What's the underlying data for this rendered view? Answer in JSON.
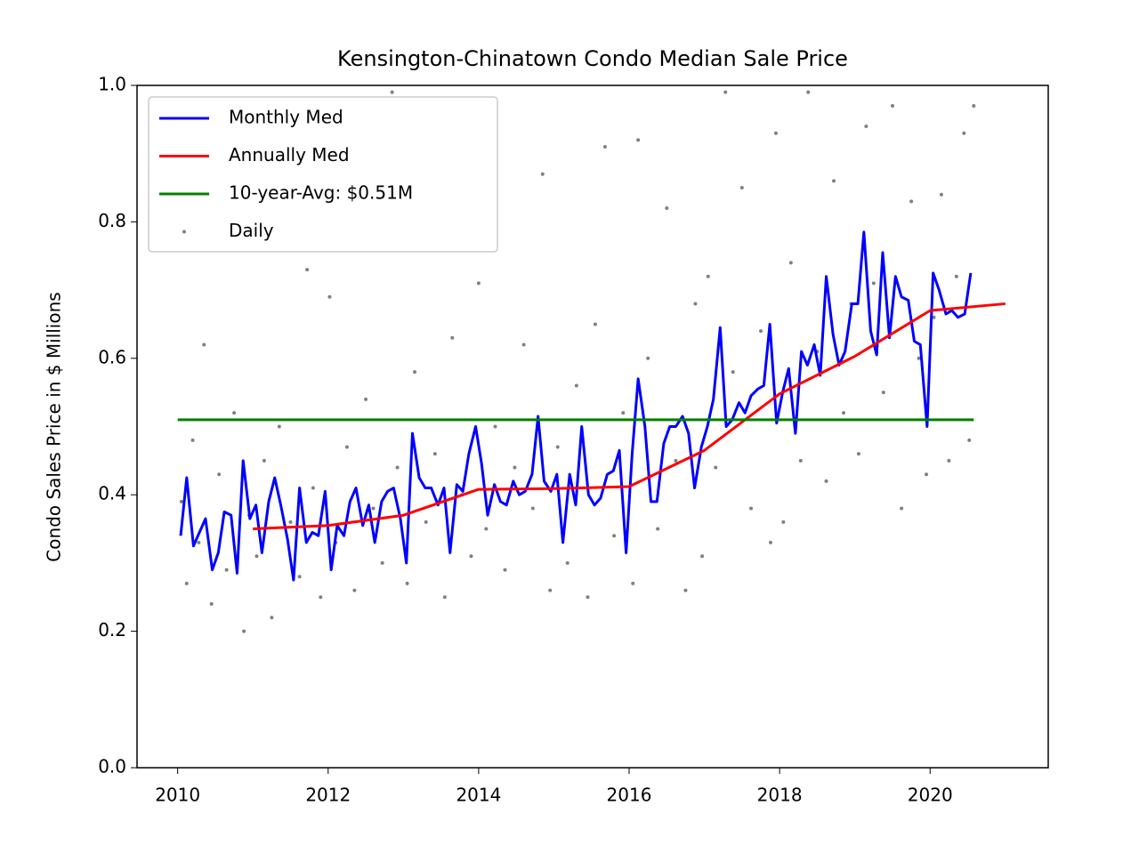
{
  "chart_data": {
    "type": "line",
    "title": "Kensington-Chinatown Condo Median Sale Price",
    "y_label": "Condo Sales Price in $ Millions",
    "xlim": [
      2009.46,
      2021.57
    ],
    "xticks": [
      2010,
      2012,
      2014,
      2016,
      2018,
      2020
    ],
    "ylim": [
      0,
      1
    ],
    "yticks": [
      {
        "value": 0,
        "label": "0.0"
      },
      0.2,
      0.4,
      0.6,
      0.8,
      {
        "value": 1,
        "label": "1.0"
      }
    ],
    "legend": "upper left",
    "series": [
      {
        "name": "Monthly Med",
        "type": "line",
        "color": "#0000ff",
        "x": [
          2010.04,
          2010.12,
          2010.21,
          2010.29,
          2010.37,
          2010.46,
          2010.54,
          2010.62,
          2010.71,
          2010.79,
          2010.87,
          2010.96,
          2011.04,
          2011.12,
          2011.21,
          2011.29,
          2011.37,
          2011.46,
          2011.54,
          2011.62,
          2011.71,
          2011.79,
          2011.87,
          2011.96,
          2012.04,
          2012.12,
          2012.21,
          2012.29,
          2012.37,
          2012.46,
          2012.54,
          2012.62,
          2012.71,
          2012.79,
          2012.87,
          2012.96,
          2013.04,
          2013.12,
          2013.21,
          2013.29,
          2013.37,
          2013.46,
          2013.54,
          2013.62,
          2013.71,
          2013.79,
          2013.87,
          2013.96,
          2014.04,
          2014.12,
          2014.21,
          2014.29,
          2014.37,
          2014.46,
          2014.54,
          2014.62,
          2014.71,
          2014.79,
          2014.87,
          2014.96,
          2015.04,
          2015.12,
          2015.21,
          2015.29,
          2015.37,
          2015.46,
          2015.54,
          2015.62,
          2015.71,
          2015.79,
          2015.87,
          2015.96,
          2016.04,
          2016.12,
          2016.21,
          2016.29,
          2016.37,
          2016.46,
          2016.54,
          2016.62,
          2016.71,
          2016.79,
          2016.87,
          2016.96,
          2017.04,
          2017.12,
          2017.21,
          2017.29,
          2017.37,
          2017.46,
          2017.54,
          2017.62,
          2017.71,
          2017.79,
          2017.87,
          2017.96,
          2018.04,
          2018.12,
          2018.21,
          2018.29,
          2018.37,
          2018.46,
          2018.54,
          2018.62,
          2018.71,
          2018.79,
          2018.87,
          2018.96,
          2019.04,
          2019.12,
          2019.21,
          2019.29,
          2019.37,
          2019.46,
          2019.54,
          2019.62,
          2019.71,
          2019.79,
          2019.87,
          2019.96,
          2020.04,
          2020.12,
          2020.21,
          2020.29,
          2020.37,
          2020.46,
          2020.54
        ],
        "values": [
          0.34,
          0.425,
          0.325,
          0.345,
          0.365,
          0.29,
          0.315,
          0.375,
          0.37,
          0.285,
          0.45,
          0.365,
          0.385,
          0.315,
          0.39,
          0.425,
          0.385,
          0.335,
          0.275,
          0.41,
          0.33,
          0.345,
          0.34,
          0.405,
          0.29,
          0.355,
          0.34,
          0.39,
          0.41,
          0.355,
          0.385,
          0.33,
          0.39,
          0.405,
          0.41,
          0.365,
          0.3,
          0.49,
          0.425,
          0.41,
          0.41,
          0.385,
          0.41,
          0.315,
          0.415,
          0.405,
          0.46,
          0.5,
          0.445,
          0.37,
          0.415,
          0.39,
          0.385,
          0.42,
          0.4,
          0.405,
          0.43,
          0.515,
          0.42,
          0.405,
          0.43,
          0.33,
          0.43,
          0.385,
          0.5,
          0.4,
          0.385,
          0.395,
          0.43,
          0.435,
          0.465,
          0.315,
          0.46,
          0.57,
          0.5,
          0.39,
          0.39,
          0.475,
          0.5,
          0.5,
          0.515,
          0.49,
          0.41,
          0.47,
          0.5,
          0.54,
          0.645,
          0.5,
          0.51,
          0.535,
          0.52,
          0.545,
          0.555,
          0.56,
          0.65,
          0.505,
          0.55,
          0.585,
          0.49,
          0.61,
          0.59,
          0.62,
          0.575,
          0.72,
          0.635,
          0.59,
          0.61,
          0.68,
          0.68,
          0.785,
          0.64,
          0.605,
          0.755,
          0.63,
          0.72,
          0.69,
          0.685,
          0.625,
          0.62,
          0.5,
          0.725,
          0.7,
          0.665,
          0.67,
          0.66,
          0.665,
          0.725
        ]
      },
      {
        "name": "Annually Med",
        "type": "line",
        "color": "#ff0000",
        "x": [
          2011,
          2012,
          2013,
          2014,
          2015,
          2016,
          2017,
          2018,
          2019,
          2020,
          2021
        ],
        "values": [
          0.35,
          0.355,
          0.37,
          0.408,
          0.409,
          0.412,
          0.465,
          0.548,
          0.603,
          0.67,
          0.68
        ]
      },
      {
        "name": "10-year-Avg: $0.51M",
        "type": "line",
        "color": "#008000",
        "x": [
          2010,
          2020.58
        ],
        "values": [
          0.51,
          0.51
        ]
      },
      {
        "name": "Daily",
        "type": "scatter",
        "color": "#808080",
        "x": [
          2010.05,
          2010.12,
          2010.2,
          2010.28,
          2010.35,
          2010.45,
          2010.55,
          2010.65,
          2010.75,
          2010.88,
          2010.95,
          2011.05,
          2011.15,
          2011.25,
          2011.35,
          2011.5,
          2011.62,
          2011.72,
          2011.8,
          2011.9,
          2012.02,
          2012.1,
          2012.25,
          2012.35,
          2012.5,
          2012.6,
          2012.72,
          2012.85,
          2012.92,
          2013.05,
          2013.15,
          2013.3,
          2013.42,
          2013.55,
          2013.65,
          2013.78,
          2013.9,
          2014.0,
          2014.1,
          2014.22,
          2014.35,
          2014.48,
          2014.6,
          2014.72,
          2014.85,
          2014.95,
          2015.05,
          2015.18,
          2015.3,
          2015.45,
          2015.55,
          2015.68,
          2015.8,
          2015.92,
          2016.05,
          2016.12,
          2016.25,
          2016.38,
          2016.5,
          2016.62,
          2016.75,
          2016.88,
          2016.97,
          2017.05,
          2017.15,
          2017.28,
          2017.38,
          2017.5,
          2017.62,
          2017.75,
          2017.88,
          2017.95,
          2018.05,
          2018.15,
          2018.28,
          2018.38,
          2018.5,
          2018.62,
          2018.72,
          2018.85,
          2018.95,
          2019.05,
          2019.15,
          2019.25,
          2019.38,
          2019.5,
          2019.62,
          2019.75,
          2019.85,
          2019.95,
          2020.05,
          2020.15,
          2020.25,
          2020.35,
          2020.45,
          2020.52,
          2020.58
        ],
        "values": [
          0.39,
          0.27,
          0.48,
          0.33,
          0.62,
          0.24,
          0.43,
          0.29,
          0.52,
          0.2,
          0.37,
          0.31,
          0.45,
          0.22,
          0.5,
          0.36,
          0.28,
          0.73,
          0.41,
          0.25,
          0.69,
          0.33,
          0.47,
          0.26,
          0.54,
          0.38,
          0.3,
          0.99,
          0.44,
          0.27,
          0.58,
          0.36,
          0.46,
          0.25,
          0.63,
          0.4,
          0.31,
          0.71,
          0.35,
          0.5,
          0.29,
          0.44,
          0.62,
          0.38,
          0.87,
          0.26,
          0.47,
          0.3,
          0.56,
          0.25,
          0.65,
          0.91,
          0.34,
          0.52,
          0.27,
          0.92,
          0.6,
          0.35,
          0.82,
          0.45,
          0.26,
          0.68,
          0.31,
          0.72,
          0.44,
          0.99,
          0.58,
          0.85,
          0.38,
          0.64,
          0.33,
          0.93,
          0.36,
          0.74,
          0.45,
          0.99,
          0.61,
          0.42,
          0.86,
          0.52,
          0.68,
          0.46,
          0.94,
          0.71,
          0.55,
          0.97,
          0.38,
          0.83,
          0.6,
          0.43,
          0.66,
          0.84,
          0.45,
          0.72,
          0.93,
          0.48,
          0.97
        ]
      }
    ]
  }
}
